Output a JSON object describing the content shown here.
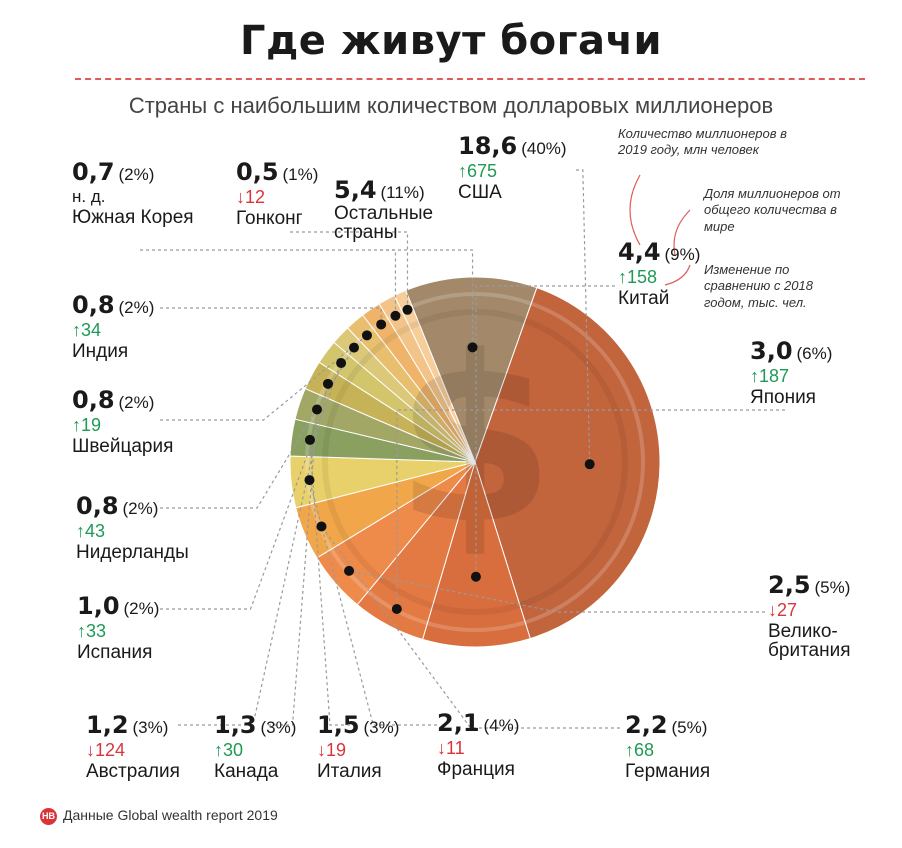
{
  "title": "Где живут богачи",
  "subtitle": "Страны с наибольшим количеством долларовых миллионеров",
  "notes": {
    "count": "Количество миллионеров в 2019 году, млн человек",
    "share": "Доля миллионеров от общего количества в мире",
    "change": "Изменение по сравнению с 2018 годом, тыс. чел."
  },
  "source": {
    "badge": "НВ",
    "text": "Данные Global wealth report 2019"
  },
  "colors": {
    "usa": "#c2643c",
    "china": "#d86e3e",
    "uk": "#ee8a4a",
    "germany": "#f1a64a",
    "france": "#e8d06a",
    "italy": "#8aa060",
    "canada": "#a2a766",
    "australia": "#c7b357",
    "rest": "#a3896a"
  },
  "chart_data": {
    "type": "pie",
    "title": "Где живут богачи",
    "subtitle": "Страны с наибольшим количеством долларовых миллионеров",
    "unit": "млн человек",
    "change_unit": "тыс. чел.",
    "slices": [
      {
        "name": "США",
        "value": "18,6",
        "share": "(40%)",
        "change": "675",
        "dir": "up",
        "arrow": "↑",
        "color": "#c2643c"
      },
      {
        "name": "Китай",
        "value": "4,4",
        "share": "(9%)",
        "change": "158",
        "dir": "up",
        "arrow": "↑",
        "color": "#d86e3e"
      },
      {
        "name": "Япония",
        "value": "3,0",
        "share": "(6%)",
        "change": "187",
        "dir": "up",
        "arrow": "↑",
        "color": "#e37a43"
      },
      {
        "name": "Велико-британия",
        "value": "2,5",
        "share": "(5%)",
        "change": "27",
        "dir": "down",
        "arrow": "↓",
        "color": "#ee8a4a"
      },
      {
        "name": "Германия",
        "value": "2,2",
        "share": "(5%)",
        "change": "68",
        "dir": "up",
        "arrow": "↑",
        "color": "#f1a64a"
      },
      {
        "name": "Франция",
        "value": "2,1",
        "share": "(4%)",
        "change": "11",
        "dir": "down",
        "arrow": "↓",
        "color": "#e8d06a"
      },
      {
        "name": "Италия",
        "value": "1,5",
        "share": "(3%)",
        "change": "19",
        "dir": "down",
        "arrow": "↓",
        "color": "#8aa060"
      },
      {
        "name": "Канада",
        "value": "1,3",
        "share": "(3%)",
        "change": "30",
        "dir": "up",
        "arrow": "↑",
        "color": "#a2a766"
      },
      {
        "name": "Австралия",
        "value": "1,2",
        "share": "(3%)",
        "change": "124",
        "dir": "down",
        "arrow": "↓",
        "color": "#c7b357"
      },
      {
        "name": "Испания",
        "value": "1,0",
        "share": "(2%)",
        "change": "33",
        "dir": "up",
        "arrow": "↑",
        "color": "#d3c56c"
      },
      {
        "name": "Нидерланды",
        "value": "0,8",
        "share": "(2%)",
        "change": "43",
        "dir": "up",
        "arrow": "↑",
        "color": "#dcc879"
      },
      {
        "name": "Швейцария",
        "value": "0,8",
        "share": "(2%)",
        "change": "19",
        "dir": "up",
        "arrow": "↑",
        "color": "#e8bf6e"
      },
      {
        "name": "Индия",
        "value": "0,8",
        "share": "(2%)",
        "change": "34",
        "dir": "up",
        "arrow": "↑",
        "color": "#efb469"
      },
      {
        "name": "Южная Корея",
        "value": "0,7",
        "share": "(2%)",
        "change": "н. д.",
        "dir": "na",
        "arrow": "",
        "color": "#f3c48a"
      },
      {
        "name": "Гонконг",
        "value": "0,5",
        "share": "(1%)",
        "change": "12",
        "dir": "down",
        "arrow": "↓",
        "color": "#f6ce9a"
      },
      {
        "name": "Остальные страны",
        "value": "5,4",
        "share": "(11%)",
        "change": "",
        "dir": "none",
        "arrow": "",
        "color": "#a3896a"
      }
    ]
  }
}
